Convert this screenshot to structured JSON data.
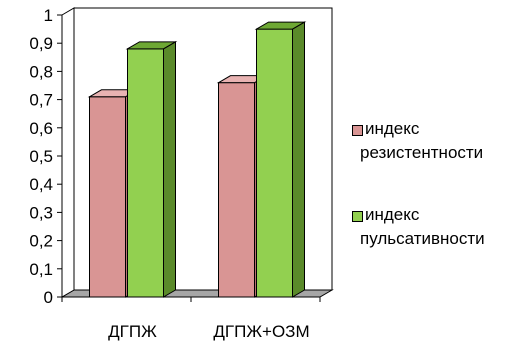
{
  "chart_data": {
    "type": "bar",
    "style": "3d-clustered-column",
    "categories": [
      "ДГПЖ",
      "ДГПЖ+ОЗМ"
    ],
    "series": [
      {
        "name": "индекс резистентности",
        "legend_lines": [
          "индекс",
          "резистентности"
        ],
        "color": "#d99594",
        "side_color": "#b87372",
        "top_color": "#e8b3b2",
        "values": [
          0.71,
          0.76
        ]
      },
      {
        "name": "индекс пульсативности",
        "legend_lines": [
          "индекс",
          "пульсативности"
        ],
        "color": "#92d050",
        "side_color": "#5a8a2a",
        "top_color": "#6ea834",
        "values": [
          0.88,
          0.95
        ]
      }
    ],
    "yticks": [
      "0",
      "0,1",
      "0,2",
      "0,3",
      "0,4",
      "0,5",
      "0,6",
      "0,7",
      "0,8",
      "0,9",
      "1"
    ],
    "ylim": [
      0,
      1
    ],
    "grid": false,
    "legend_position": "right",
    "floor_color": "#a6a6a6"
  }
}
